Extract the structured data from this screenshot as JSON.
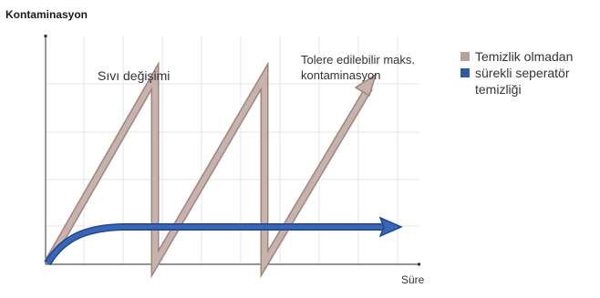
{
  "title": "Kontaminasyon",
  "x_label": "Süre",
  "annotations": {
    "fluid_change": "Sıvı değişimi",
    "tolerable_line1": "Tolere edilebilir maks.",
    "tolerable_line2": "kontaminasyon"
  },
  "legend": [
    {
      "label": "Temizlik olmadan",
      "color": "#b9a19a"
    },
    {
      "label": "sürekli seperatör temizliği",
      "label_line1": "sürekli seperatör",
      "label_line2": "temizliği",
      "color": "#2e5aa8"
    }
  ],
  "colors": {
    "grid": "#e6e6e6",
    "axis": "#555555",
    "sawtooth": "#b9a19a",
    "sawtooth_edge": "#9d8580",
    "continuous": "#2e5aa8"
  }
}
